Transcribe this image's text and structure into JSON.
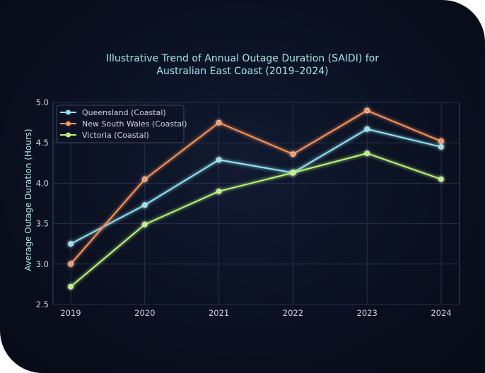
{
  "chart_data": {
    "type": "line",
    "title": "Illustrative Trend of Annual Outage Duration (SAIDI) for\nAustralian East Coast (2019–2024)",
    "title_lines": [
      "Illustrative Trend of Annual Outage Duration (SAIDI) for",
      "Australian East Coast (2019–2024)"
    ],
    "xlabel": "",
    "ylabel": "Average Outage Duration (Hours)",
    "x": [
      "2019",
      "2020",
      "2021",
      "2022",
      "2023",
      "2024"
    ],
    "ylim": [
      2.5,
      5.0
    ],
    "yticks": [
      "2.5",
      "3.0",
      "3.5",
      "4.0",
      "4.5",
      "5.0"
    ],
    "grid": true,
    "legend_position": "top-left",
    "series": [
      {
        "name": "Queensland (Coastal)",
        "color": "#8fe3ef",
        "values": [
          3.25,
          3.73,
          4.29,
          4.13,
          4.67,
          4.45
        ]
      },
      {
        "name": "New South Wales (Coastal)",
        "color": "#ff9258",
        "values": [
          3.0,
          4.05,
          4.75,
          4.36,
          4.9,
          4.52
        ]
      },
      {
        "name": "Victoria (Coastal)",
        "color": "#b8f577",
        "values": [
          2.72,
          3.49,
          3.9,
          4.13,
          4.37,
          4.05
        ]
      }
    ]
  }
}
